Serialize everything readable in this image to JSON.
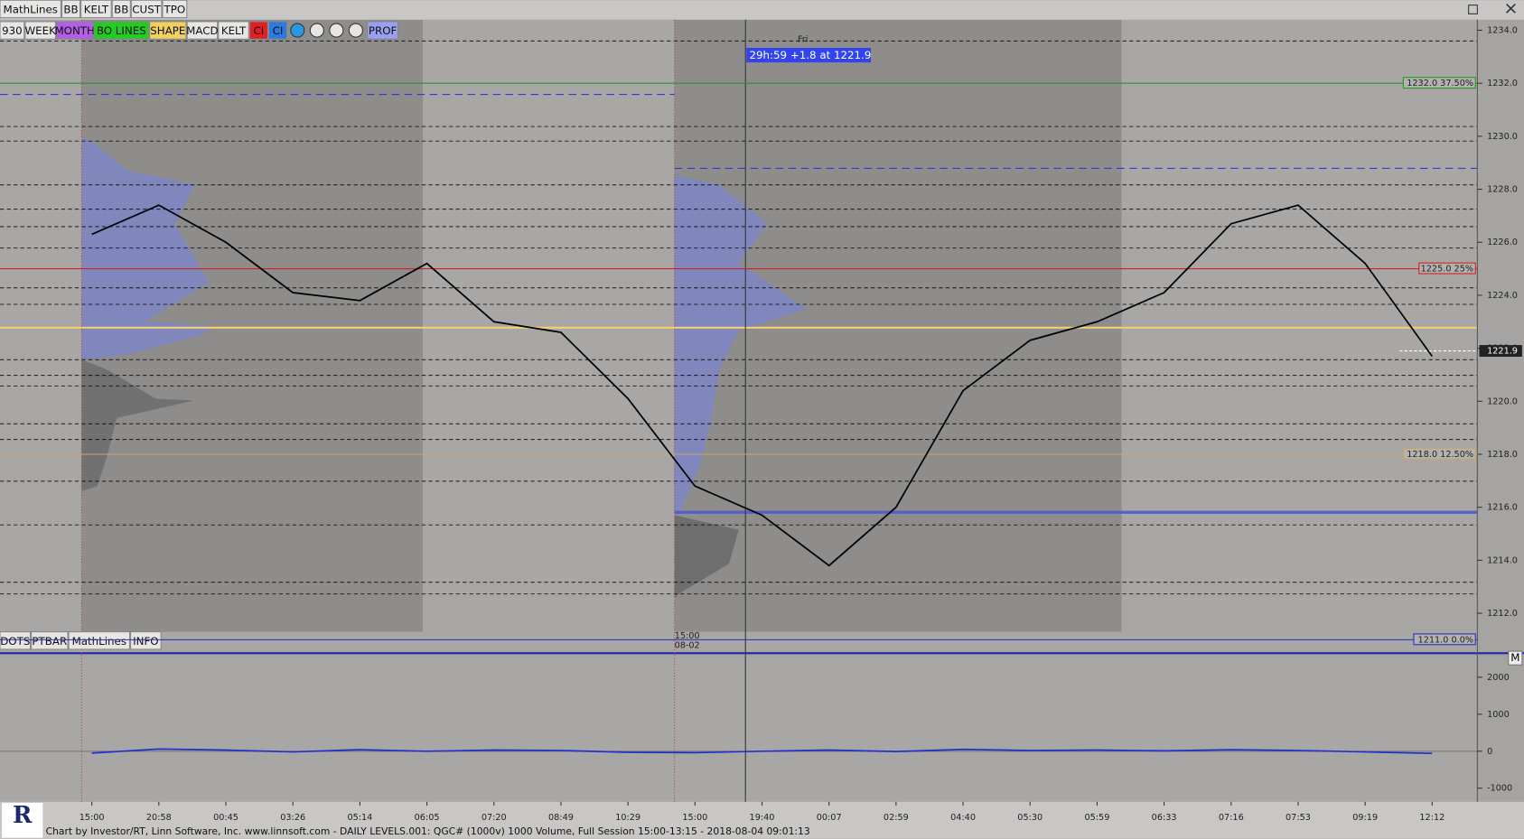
{
  "toolbar_top": [
    {
      "label": "MathLines"
    },
    {
      "label": "BB"
    },
    {
      "label": "KELT"
    },
    {
      "label": "BB"
    },
    {
      "label": "CUST"
    },
    {
      "label": "TPO"
    }
  ],
  "toolbar_main": [
    {
      "label": "930"
    },
    {
      "label": "WEEK"
    },
    {
      "label": "MONTH",
      "color": "#b45ee6"
    },
    {
      "label": "BO LINES",
      "color": "#22cc22"
    },
    {
      "label": "SHAPE",
      "color": "#f0d060"
    },
    {
      "label": "MACD"
    },
    {
      "label": "KELT"
    },
    {
      "label": "CI",
      "color": "#e02020"
    },
    {
      "label": "CI",
      "color": "#2a7ae0"
    },
    {
      "label": "PROF",
      "color": "#9aa0f0"
    }
  ],
  "toolbar_bottom": [
    {
      "label": "DOTS"
    },
    {
      "label": "PTBAR"
    },
    {
      "label": "MathLines"
    },
    {
      "label": "INFO"
    }
  ],
  "side_button": "M",
  "day_label": "Fri",
  "session_time": "15:00",
  "session_date": "08-02",
  "status_banner": "29h:59  +1.8 at 1221.9",
  "footer": "Chart by Investor/RT, Linn Software, Inc. www.linnsoft.com - DAILY LEVELS.001: QGC# (1000v) 1000 Volume, Full Session 15:00-13:15 - 2018-08-04 09:01:13",
  "chart_data": [
    {
      "type": "line",
      "color": "#000000",
      "categories": [
        "15:00",
        "20:58",
        "00:45",
        "03:26",
        "05:14",
        "06:05",
        "07:20",
        "08:49",
        "10:29",
        "15:00",
        "19:40",
        "00:07",
        "02:59",
        "04:40",
        "05:30",
        "05:59",
        "06:33",
        "07:16",
        "07:53",
        "09:19",
        "12:12"
      ],
      "values": [
        1226.3,
        1227.4,
        1226.0,
        1224.1,
        1223.8,
        1225.2,
        1223.0,
        1222.6,
        1220.1,
        1216.8,
        1215.7,
        1213.8,
        1216.0,
        1220.4,
        1222.3,
        1223.0,
        1224.1,
        1226.7,
        1227.4,
        1225.2,
        1221.7
      ],
      "ylim": [
        1211.3,
        1234.4
      ],
      "yticks": [
        {
          "value": 1212,
          "label": "1212.0"
        },
        {
          "value": 1214,
          "label": "1214.0"
        },
        {
          "value": 1216,
          "label": "1216.0"
        },
        {
          "value": 1218,
          "label": "1218.0"
        },
        {
          "value": 1220,
          "label": "1220.0"
        },
        {
          "value": 1222,
          "label": "1222.0"
        },
        {
          "value": 1224,
          "label": "1224.0"
        },
        {
          "value": 1226,
          "label": "1226.0"
        },
        {
          "value": 1228,
          "label": "1228.0"
        },
        {
          "value": 1230,
          "label": "1230.0"
        },
        {
          "value": 1232,
          "label": "1232.0"
        },
        {
          "value": 1234,
          "label": "1234.0"
        }
      ],
      "levels": [
        {
          "value": 1232,
          "label": "1232.0 37.50%",
          "color": "#1e9a1e"
        },
        {
          "value": 1225,
          "label": "1225.0 25%",
          "color": "#d02020"
        },
        {
          "value": 1218,
          "label": "1218.0 12.50%",
          "color": "#c9a468"
        },
        {
          "value": 1211,
          "label": "1211.0 0.0%",
          "color": "#2030c0"
        }
      ],
      "last_price": {
        "value": 1221.9,
        "label": "1221.9"
      }
    },
    {
      "type": "line",
      "color": "#2030d0",
      "values": [
        -50,
        60,
        30,
        -20,
        40,
        0,
        30,
        20,
        -30,
        -40,
        0,
        30,
        -10,
        50,
        20,
        30,
        10,
        40,
        20,
        -20,
        -60
      ],
      "ylim": [
        -1370,
        2650
      ],
      "yticks": [
        2000,
        1000,
        0,
        -1000
      ]
    }
  ]
}
